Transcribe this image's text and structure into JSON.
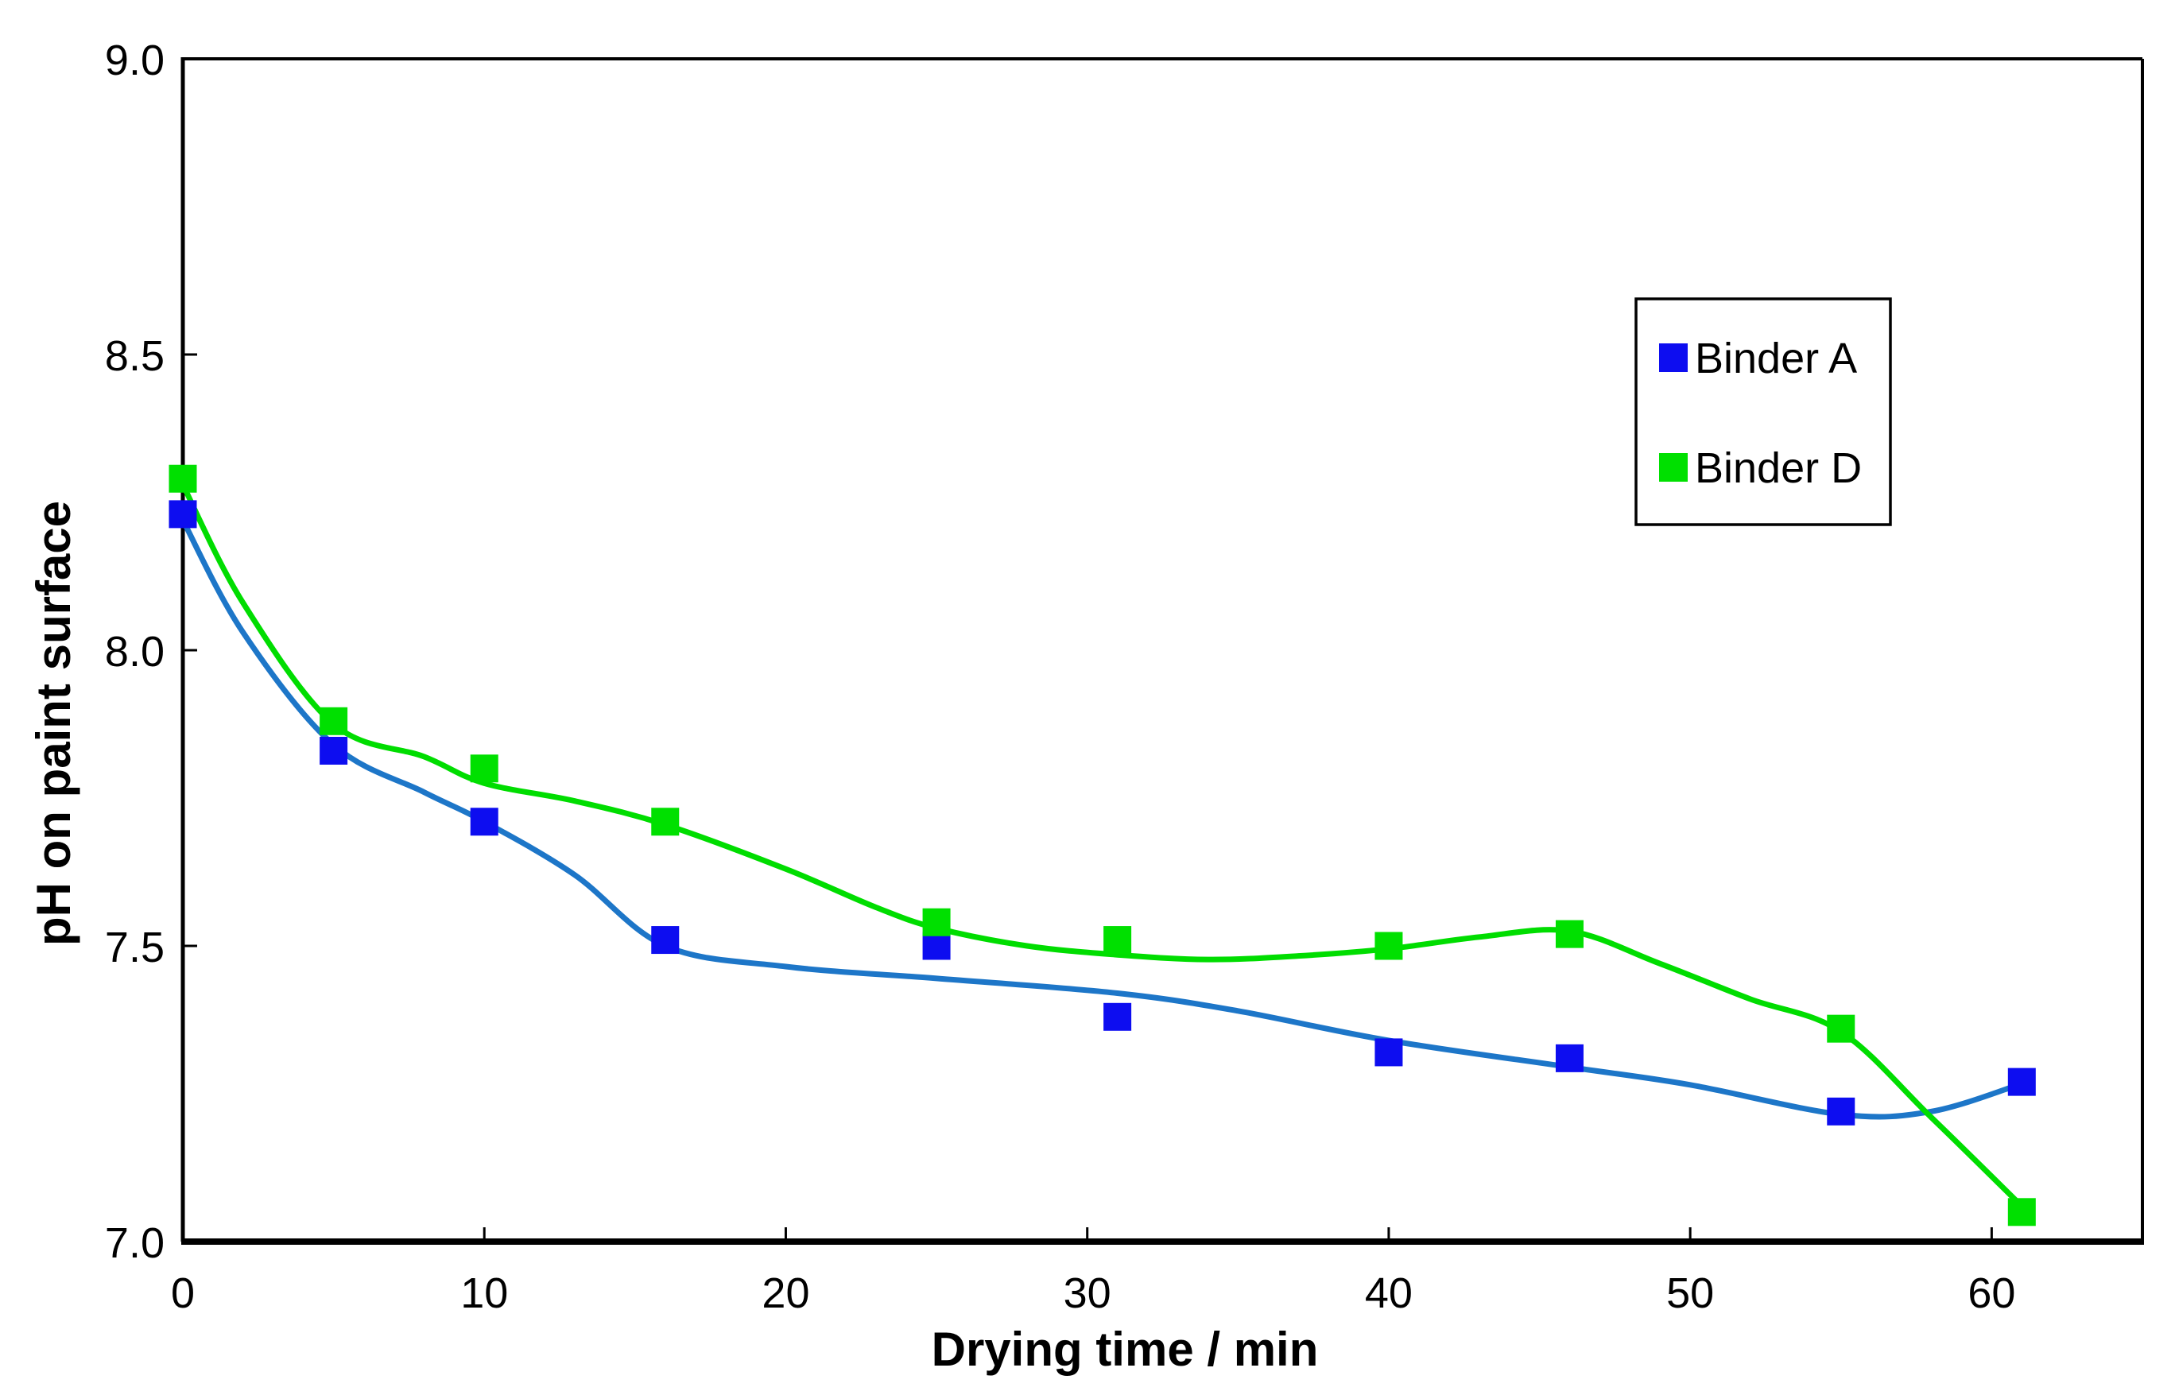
{
  "chart_data": {
    "type": "scatter",
    "title": "",
    "xlabel": "Drying time / min",
    "ylabel": "pH on paint surface",
    "xlim": [
      0,
      65
    ],
    "ylim": [
      7.0,
      9.0
    ],
    "x_ticks": [
      0,
      10,
      20,
      30,
      40,
      50,
      60
    ],
    "y_ticks": [
      7.0,
      7.5,
      8.0,
      8.5,
      9.0
    ],
    "grid": false,
    "background": "#ffffff",
    "axis_color": "#000000",
    "legend": {
      "position": "upper-right"
    },
    "series": [
      {
        "name": "Binder A",
        "marker": "square",
        "marker_color": "#0d0df0",
        "line_color": "#1d76c8",
        "x": [
          0,
          5,
          10,
          16,
          25,
          31,
          40,
          46,
          55,
          61
        ],
        "y": [
          8.23,
          7.83,
          7.71,
          7.51,
          7.5,
          7.38,
          7.32,
          7.31,
          7.22,
          7.27
        ],
        "trend": [
          [
            0,
            8.22
          ],
          [
            2,
            8.03
          ],
          [
            5,
            7.84
          ],
          [
            8,
            7.76
          ],
          [
            10,
            7.71
          ],
          [
            13,
            7.62
          ],
          [
            16,
            7.5
          ],
          [
            20,
            7.465
          ],
          [
            25,
            7.445
          ],
          [
            31,
            7.42
          ],
          [
            35,
            7.39
          ],
          [
            40,
            7.34
          ],
          [
            46,
            7.295
          ],
          [
            50,
            7.265
          ],
          [
            55,
            7.215
          ],
          [
            58,
            7.22
          ],
          [
            61,
            7.267
          ]
        ]
      },
      {
        "name": "Binder D",
        "marker": "square",
        "marker_color": "#00e000",
        "line_color": "#00dd00",
        "x": [
          0,
          5,
          10,
          16,
          25,
          31,
          40,
          46,
          55,
          61
        ],
        "y": [
          8.29,
          7.88,
          7.8,
          7.71,
          7.54,
          7.51,
          7.5,
          7.52,
          7.36,
          7.05
        ],
        "trend": [
          [
            0,
            8.28
          ],
          [
            2,
            8.08
          ],
          [
            5,
            7.875
          ],
          [
            8,
            7.82
          ],
          [
            10,
            7.775
          ],
          [
            13,
            7.745
          ],
          [
            16,
            7.705
          ],
          [
            20,
            7.63
          ],
          [
            23,
            7.565
          ],
          [
            25,
            7.53
          ],
          [
            28,
            7.5
          ],
          [
            31,
            7.485
          ],
          [
            34,
            7.477
          ],
          [
            37,
            7.483
          ],
          [
            40,
            7.495
          ],
          [
            43,
            7.515
          ],
          [
            46,
            7.525
          ],
          [
            49,
            7.47
          ],
          [
            52,
            7.41
          ],
          [
            55,
            7.355
          ],
          [
            58,
            7.21
          ],
          [
            61,
            7.06
          ]
        ]
      }
    ]
  }
}
